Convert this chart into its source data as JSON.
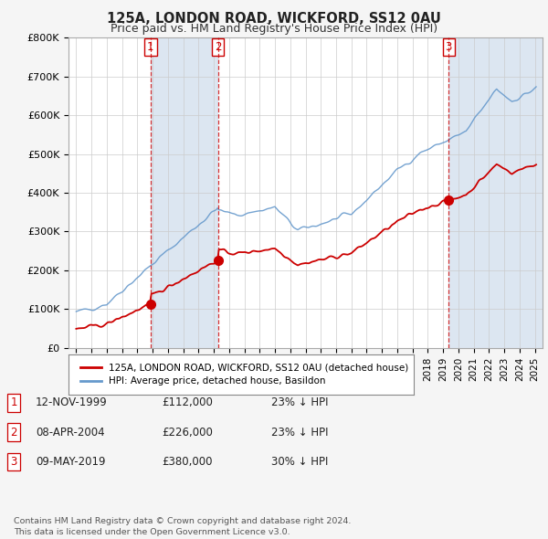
{
  "title1": "125A, LONDON ROAD, WICKFORD, SS12 0AU",
  "title2": "Price paid vs. HM Land Registry's House Price Index (HPI)",
  "ylim": [
    0,
    800000
  ],
  "yticks": [
    0,
    100000,
    200000,
    300000,
    400000,
    500000,
    600000,
    700000,
    800000
  ],
  "ytick_labels": [
    "£0",
    "£100K",
    "£200K",
    "£300K",
    "£400K",
    "£500K",
    "£600K",
    "£700K",
    "£800K"
  ],
  "transactions": [
    {
      "date_num": 1999.87,
      "price": 112000,
      "label": "1"
    },
    {
      "date_num": 2004.27,
      "price": 226000,
      "label": "2"
    },
    {
      "date_num": 2019.36,
      "price": 380000,
      "label": "3"
    }
  ],
  "legend_price": "125A, LONDON ROAD, WICKFORD, SS12 0AU (detached house)",
  "legend_hpi": "HPI: Average price, detached house, Basildon",
  "table_rows": [
    {
      "num": "1",
      "date": "12-NOV-1999",
      "price": "£112,000",
      "note": "23% ↓ HPI"
    },
    {
      "num": "2",
      "date": "08-APR-2004",
      "price": "£226,000",
      "note": "23% ↓ HPI"
    },
    {
      "num": "3",
      "date": "09-MAY-2019",
      "price": "£380,000",
      "note": "30% ↓ HPI"
    }
  ],
  "footnote": "Contains HM Land Registry data © Crown copyright and database right 2024.\nThis data is licensed under the Open Government Licence v3.0.",
  "price_color": "#cc0000",
  "hpi_color": "#6699cc",
  "shade_color": "#dce6f1",
  "plot_bg": "#ffffff",
  "grid_color": "#cccccc",
  "fig_bg": "#f5f5f5"
}
